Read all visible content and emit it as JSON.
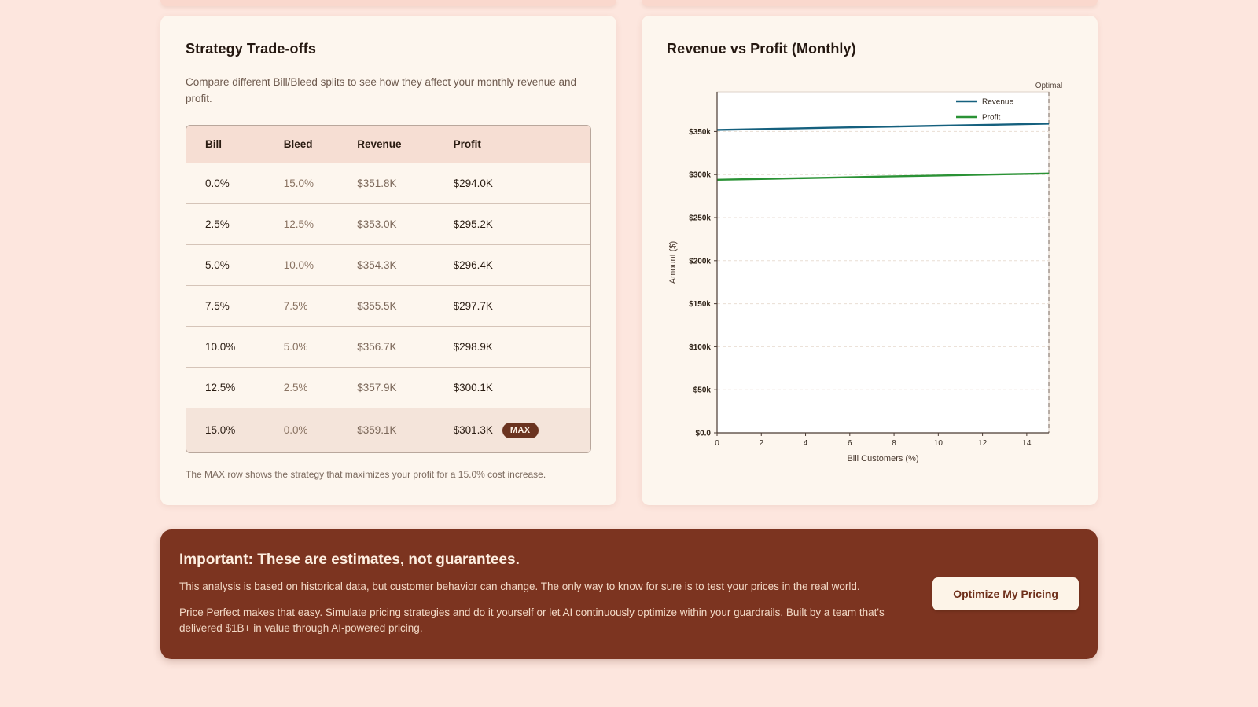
{
  "tradeoffs_card": {
    "title": "Strategy Trade-offs",
    "description": "Compare different Bill/Bleed splits to see how they affect your monthly revenue and profit.",
    "table": {
      "headers": [
        "Bill",
        "Bleed",
        "Revenue",
        "Profit"
      ],
      "rows": [
        {
          "bill": "0.0%",
          "bleed": "15.0%",
          "revenue": "$351.8K",
          "profit": "$294.0K",
          "max": false
        },
        {
          "bill": "2.5%",
          "bleed": "12.5%",
          "revenue": "$353.0K",
          "profit": "$295.2K",
          "max": false
        },
        {
          "bill": "5.0%",
          "bleed": "10.0%",
          "revenue": "$354.3K",
          "profit": "$296.4K",
          "max": false
        },
        {
          "bill": "7.5%",
          "bleed": "7.5%",
          "revenue": "$355.5K",
          "profit": "$297.7K",
          "max": false
        },
        {
          "bill": "10.0%",
          "bleed": "5.0%",
          "revenue": "$356.7K",
          "profit": "$298.9K",
          "max": false
        },
        {
          "bill": "12.5%",
          "bleed": "2.5%",
          "revenue": "$357.9K",
          "profit": "$300.1K",
          "max": false
        },
        {
          "bill": "15.0%",
          "bleed": "0.0%",
          "revenue": "$359.1K",
          "profit": "$301.3K",
          "max": true
        }
      ],
      "max_badge": "MAX"
    },
    "footnote": "The MAX row shows the strategy that maximizes your profit for a 15.0% cost increase."
  },
  "chart_card": {
    "title": "Revenue vs Profit (Monthly)"
  },
  "chart_data": {
    "type": "line",
    "title": "Revenue vs Profit (Monthly)",
    "xlabel": "Bill Customers (%)",
    "ylabel": "Amount ($)",
    "x": [
      0,
      2.5,
      5,
      7.5,
      10,
      12.5,
      15
    ],
    "series": [
      {
        "name": "Revenue",
        "color": "#15607e",
        "values": [
          351800,
          353000,
          354300,
          355500,
          356700,
          357900,
          359100
        ]
      },
      {
        "name": "Profit",
        "color": "#2a9235",
        "values": [
          294000,
          295200,
          296400,
          297700,
          298900,
          300100,
          301300
        ]
      }
    ],
    "xlim": [
      0,
      15
    ],
    "ylim": [
      0,
      396000
    ],
    "xticks": [
      0,
      2,
      4,
      6,
      8,
      10,
      12,
      14
    ],
    "yticks": [
      0,
      50000,
      100000,
      150000,
      200000,
      250000,
      300000,
      350000
    ],
    "ytick_labels": [
      "$0.0",
      "$50k",
      "$100k",
      "$150k",
      "$200k",
      "$250k",
      "$300k",
      "$350k"
    ],
    "grid": true,
    "legend_position": "upper right",
    "annotation": {
      "label": "Optimal",
      "x": 15
    }
  },
  "banner": {
    "title": "Important: These are estimates, not guarantees.",
    "paragraph1": "This analysis is based on historical data, but customer behavior can change. The only way to know for sure is to test your prices in the real world.",
    "paragraph2": "Price Perfect makes that easy. Simulate pricing strategies and do it yourself or let AI continuously optimize within your guardrails. Built by a team that's delivered $1B+ in value through AI-powered pricing.",
    "button_label": "Optimize My Pricing"
  }
}
